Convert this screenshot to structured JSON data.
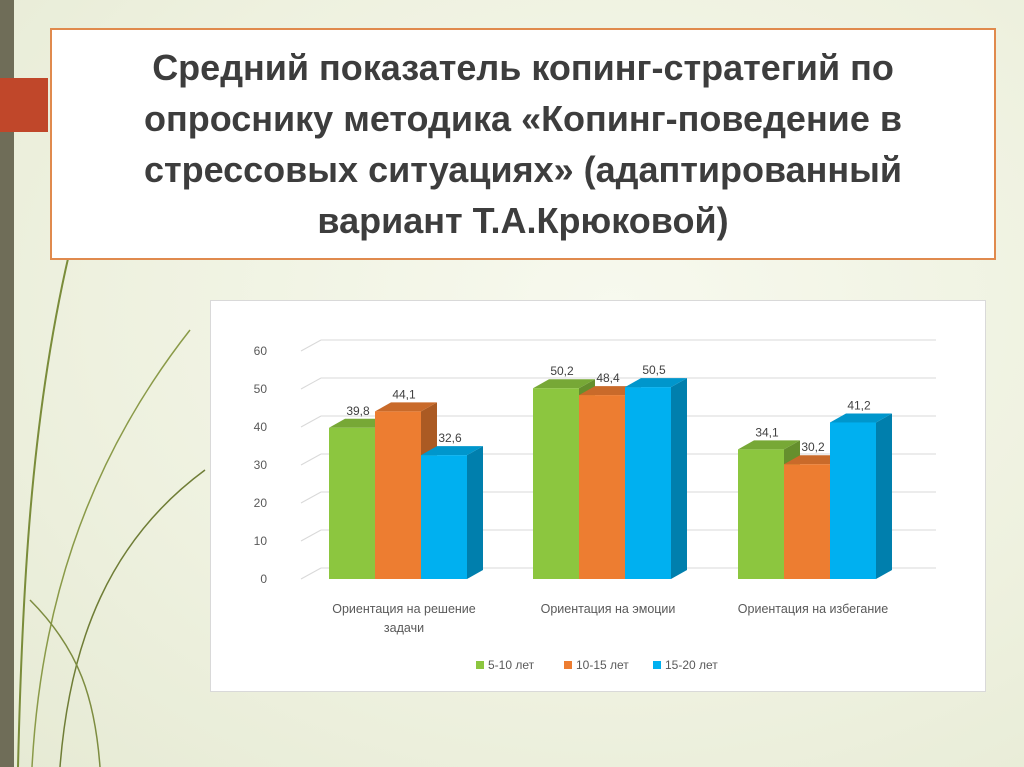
{
  "slide": {
    "title": "Средний показатель копинг-стратегий по опроснику методика «Копинг-поведение в стрессовых ситуациях» (адаптированный вариант Т.А.Крюковой)"
  },
  "colors": {
    "green": "#8cc63f",
    "orange": "#ed7d31",
    "blue": "#00b0f0",
    "title_border": "#e08a4d",
    "accent": "#c0472a"
  },
  "chart_data": {
    "type": "bar",
    "categories": [
      [
        "Ориентация на решение",
        "задачи"
      ],
      [
        "Ориентация на эмоции"
      ],
      [
        "Ориентация на избегание"
      ]
    ],
    "series": [
      {
        "name": "5-10 лет",
        "values": [
          39.8,
          50.2,
          34.1
        ],
        "labels": [
          "39,8",
          "50,2",
          "34,1"
        ],
        "color": "#8cc63f"
      },
      {
        "name": "10-15 лет",
        "values": [
          44.1,
          48.4,
          30.2
        ],
        "labels": [
          "44,1",
          "48,4",
          "30,2"
        ],
        "color": "#ed7d31"
      },
      {
        "name": "15-20 лет",
        "values": [
          32.6,
          50.5,
          41.2
        ],
        "labels": [
          "32,6",
          "50,5",
          "41,2"
        ],
        "color": "#00b0f0"
      }
    ],
    "yticks": [
      "0",
      "10",
      "20",
      "30",
      "40",
      "50",
      "60"
    ],
    "ylim": [
      0,
      60
    ],
    "grid": true,
    "legend_position": "bottom",
    "style": "3d-clustered-column"
  }
}
